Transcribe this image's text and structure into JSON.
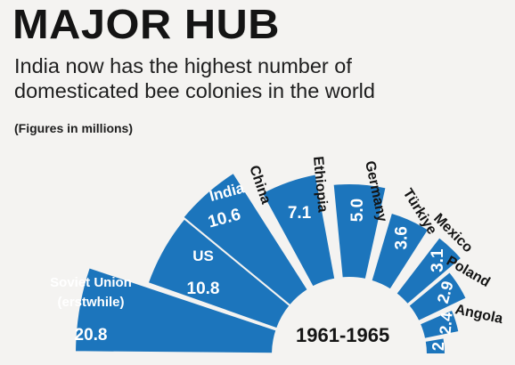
{
  "title": "MAJOR HUB",
  "subtitle": "India now has the highest number of domesticated bee colonies in the world",
  "units": "(Figures in millions)",
  "period": "1961-1965",
  "colors": {
    "segment": "#1c75bc",
    "label": "#141414",
    "value_text": "#ffffff"
  },
  "chart_data": {
    "type": "bar",
    "layout": "radial-half",
    "categories": [
      "Soviet Union (erstwhile)",
      "US",
      "India",
      "China",
      "Ethiopia",
      "Germany",
      "Türkiye",
      "Mexico",
      "Poland",
      "Angola"
    ],
    "values": [
      20.8,
      10.8,
      10.6,
      7.1,
      5.0,
      3.6,
      3.1,
      2.9,
      2.4,
      2
    ],
    "value_labels": [
      "20.8",
      "10.8",
      "10.6",
      "7.1",
      "5.0",
      "3.6",
      "3.1",
      "2.9",
      "2.4",
      "2"
    ],
    "title": "MAJOR HUB",
    "subtitle": "India now has the highest number of domesticated bee colonies in the world",
    "units": "(Figures in millions)",
    "annotation": "1961-1965"
  }
}
